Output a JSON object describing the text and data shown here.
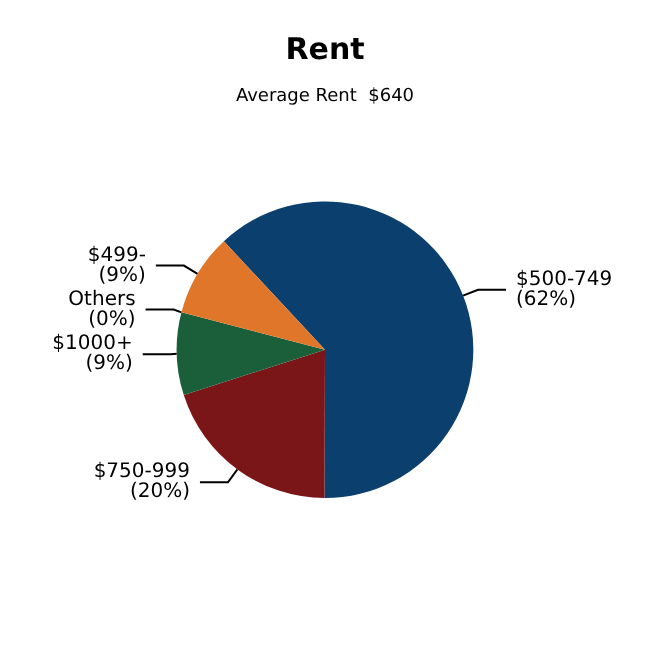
{
  "chart_data": {
    "type": "pie",
    "title": "Rent",
    "subtitle": "Average Rent  $640",
    "categories": [
      "$500-749",
      "$750-999",
      "$1000+",
      "Others",
      "$499-"
    ],
    "values": [
      62,
      20,
      9,
      0,
      9
    ],
    "colors": [
      "#0b3f6e",
      "#7a1518",
      "#1a5e3a",
      "#8c8c8c",
      "#e0762a"
    ],
    "value_labels": [
      "(62%)",
      "(20%)",
      "(9%)",
      "(0%)",
      "(9%)"
    ]
  }
}
